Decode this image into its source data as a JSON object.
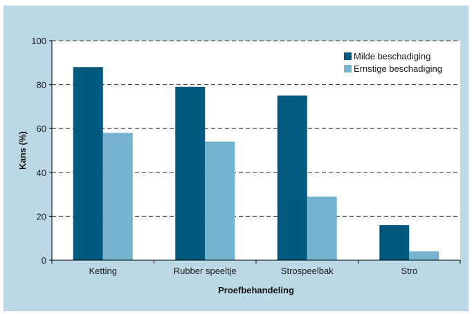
{
  "colors": {
    "background": "#bcd8e7",
    "plot_area": "#ffffff",
    "series_1": "#005a80",
    "series_2": "#74b2cf",
    "gridline": "#333333"
  },
  "chart_data": {
    "type": "bar",
    "categories": [
      "Ketting",
      "Rubber speeltje",
      "Strospeelbak",
      "Stro"
    ],
    "series": [
      {
        "name": "Milde beschadiging",
        "values": [
          88,
          79,
          75,
          16
        ]
      },
      {
        "name": "Ernstige beschadiging",
        "values": [
          58,
          54,
          29,
          4
        ]
      }
    ],
    "title": "",
    "xlabel": "Proefbehandeling",
    "ylabel": "Kans (%)",
    "ylim": [
      0,
      100
    ],
    "yticks": [
      0,
      20,
      40,
      60,
      80,
      100
    ],
    "grid": "horizontal dashed",
    "legend_position": "top-right"
  }
}
